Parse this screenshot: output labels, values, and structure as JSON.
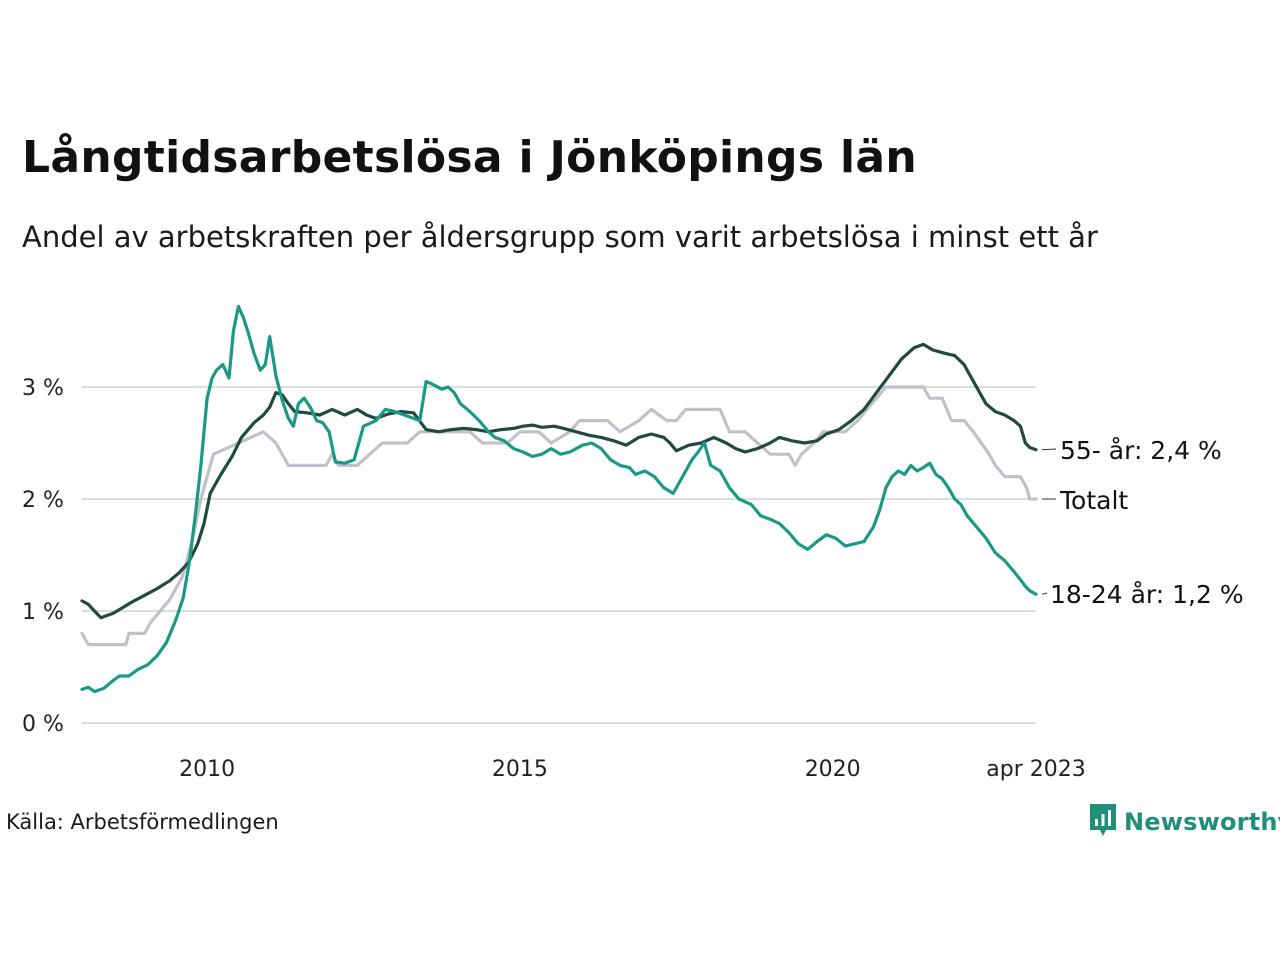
{
  "title": "Långtidsarbetslösa i Jönköpings län",
  "subtitle": "Andel av arbetskraften per åldersgrupp som varit arbetslösa i minst ett år",
  "source": "Källa: Arbetsförmedlingen",
  "brand": {
    "name": "Newsworthy",
    "icon": "newsworthy-logo-icon",
    "color": "#1f8f7c"
  },
  "chart_data": {
    "type": "line",
    "ylim": [
      0,
      3.8
    ],
    "xlim": [
      2008.0,
      2023.25
    ],
    "y_ticks": [
      {
        "value": 0,
        "label": "0 %"
      },
      {
        "value": 1,
        "label": "1 %"
      },
      {
        "value": 2,
        "label": "2 %"
      },
      {
        "value": 3,
        "label": "3 %"
      }
    ],
    "x_ticks": [
      {
        "value": 2010.0,
        "label": "2010"
      },
      {
        "value": 2015.0,
        "label": "2015"
      },
      {
        "value": 2020.0,
        "label": "2020"
      },
      {
        "value": 2023.25,
        "label": "apr 2023"
      }
    ],
    "grid": true,
    "series": [
      {
        "name": "Totalt",
        "end_label": "Totalt",
        "color": "#c4c0c9",
        "points": [
          [
            2008.0,
            0.8
          ],
          [
            2008.1,
            0.7
          ],
          [
            2008.7,
            0.7
          ],
          [
            2008.75,
            0.8
          ],
          [
            2009.0,
            0.8
          ],
          [
            2009.1,
            0.9
          ],
          [
            2009.25,
            1.0
          ],
          [
            2009.4,
            1.1
          ],
          [
            2009.6,
            1.3
          ],
          [
            2009.75,
            1.6
          ],
          [
            2009.9,
            2.0
          ],
          [
            2010.0,
            2.2
          ],
          [
            2010.1,
            2.4
          ],
          [
            2010.5,
            2.5
          ],
          [
            2010.9,
            2.6
          ],
          [
            2011.1,
            2.5
          ],
          [
            2011.3,
            2.3
          ],
          [
            2011.6,
            2.3
          ],
          [
            2011.9,
            2.3
          ],
          [
            2012.0,
            2.4
          ],
          [
            2012.1,
            2.3
          ],
          [
            2012.4,
            2.3
          ],
          [
            2012.6,
            2.4
          ],
          [
            2012.8,
            2.5
          ],
          [
            2013.2,
            2.5
          ],
          [
            2013.4,
            2.6
          ],
          [
            2013.8,
            2.6
          ],
          [
            2014.0,
            2.6
          ],
          [
            2014.2,
            2.6
          ],
          [
            2014.4,
            2.5
          ],
          [
            2014.8,
            2.5
          ],
          [
            2015.0,
            2.6
          ],
          [
            2015.3,
            2.6
          ],
          [
            2015.5,
            2.5
          ],
          [
            2015.8,
            2.6
          ],
          [
            2015.95,
            2.7
          ],
          [
            2016.4,
            2.7
          ],
          [
            2016.6,
            2.6
          ],
          [
            2016.9,
            2.7
          ],
          [
            2017.1,
            2.8
          ],
          [
            2017.35,
            2.7
          ],
          [
            2017.5,
            2.7
          ],
          [
            2017.65,
            2.8
          ],
          [
            2018.2,
            2.8
          ],
          [
            2018.35,
            2.6
          ],
          [
            2018.6,
            2.6
          ],
          [
            2018.8,
            2.5
          ],
          [
            2019.0,
            2.4
          ],
          [
            2019.3,
            2.4
          ],
          [
            2019.4,
            2.3
          ],
          [
            2019.5,
            2.4
          ],
          [
            2019.7,
            2.5
          ],
          [
            2019.85,
            2.6
          ],
          [
            2020.2,
            2.6
          ],
          [
            2020.4,
            2.7
          ],
          [
            2020.55,
            2.8
          ],
          [
            2020.7,
            2.9
          ],
          [
            2020.85,
            3.0
          ],
          [
            2021.45,
            3.0
          ],
          [
            2021.55,
            2.9
          ],
          [
            2021.75,
            2.9
          ],
          [
            2021.9,
            2.7
          ],
          [
            2022.1,
            2.7
          ],
          [
            2022.25,
            2.6
          ],
          [
            2022.5,
            2.4
          ],
          [
            2022.6,
            2.3
          ],
          [
            2022.75,
            2.2
          ],
          [
            2023.0,
            2.2
          ],
          [
            2023.1,
            2.1
          ],
          [
            2023.15,
            2.0
          ],
          [
            2023.25,
            2.0
          ]
        ]
      },
      {
        "name": "55- år",
        "end_label": "55- år: 2,4 %",
        "color": "#1f4a3c",
        "points": [
          [
            2008.0,
            1.09
          ],
          [
            2008.1,
            1.06
          ],
          [
            2008.2,
            1.0
          ],
          [
            2008.3,
            0.94
          ],
          [
            2008.4,
            0.96
          ],
          [
            2008.5,
            0.98
          ],
          [
            2008.65,
            1.03
          ],
          [
            2008.8,
            1.08
          ],
          [
            2009.0,
            1.14
          ],
          [
            2009.2,
            1.2
          ],
          [
            2009.4,
            1.27
          ],
          [
            2009.55,
            1.34
          ],
          [
            2009.7,
            1.43
          ],
          [
            2009.85,
            1.6
          ],
          [
            2009.95,
            1.78
          ],
          [
            2010.05,
            2.05
          ],
          [
            2010.2,
            2.2
          ],
          [
            2010.4,
            2.38
          ],
          [
            2010.55,
            2.55
          ],
          [
            2010.75,
            2.68
          ],
          [
            2010.9,
            2.75
          ],
          [
            2011.0,
            2.82
          ],
          [
            2011.1,
            2.95
          ],
          [
            2011.2,
            2.93
          ],
          [
            2011.3,
            2.85
          ],
          [
            2011.4,
            2.78
          ],
          [
            2011.6,
            2.77
          ],
          [
            2011.8,
            2.75
          ],
          [
            2012.0,
            2.8
          ],
          [
            2012.2,
            2.75
          ],
          [
            2012.4,
            2.8
          ],
          [
            2012.55,
            2.75
          ],
          [
            2012.7,
            2.72
          ],
          [
            2012.9,
            2.76
          ],
          [
            2013.1,
            2.78
          ],
          [
            2013.3,
            2.77
          ],
          [
            2013.5,
            2.62
          ],
          [
            2013.7,
            2.6
          ],
          [
            2013.9,
            2.62
          ],
          [
            2014.1,
            2.63
          ],
          [
            2014.3,
            2.62
          ],
          [
            2014.5,
            2.6
          ],
          [
            2014.7,
            2.62
          ],
          [
            2014.9,
            2.63
          ],
          [
            2015.05,
            2.65
          ],
          [
            2015.2,
            2.66
          ],
          [
            2015.35,
            2.64
          ],
          [
            2015.55,
            2.65
          ],
          [
            2015.7,
            2.63
          ],
          [
            2015.9,
            2.6
          ],
          [
            2016.1,
            2.57
          ],
          [
            2016.3,
            2.55
          ],
          [
            2016.5,
            2.52
          ],
          [
            2016.7,
            2.48
          ],
          [
            2016.9,
            2.55
          ],
          [
            2017.1,
            2.58
          ],
          [
            2017.3,
            2.55
          ],
          [
            2017.4,
            2.5
          ],
          [
            2017.5,
            2.43
          ],
          [
            2017.7,
            2.48
          ],
          [
            2017.9,
            2.5
          ],
          [
            2018.1,
            2.55
          ],
          [
            2018.3,
            2.5
          ],
          [
            2018.45,
            2.45
          ],
          [
            2018.6,
            2.42
          ],
          [
            2018.8,
            2.45
          ],
          [
            2019.0,
            2.5
          ],
          [
            2019.15,
            2.55
          ],
          [
            2019.35,
            2.52
          ],
          [
            2019.55,
            2.5
          ],
          [
            2019.75,
            2.52
          ],
          [
            2019.9,
            2.58
          ],
          [
            2020.1,
            2.62
          ],
          [
            2020.3,
            2.7
          ],
          [
            2020.5,
            2.8
          ],
          [
            2020.7,
            2.95
          ],
          [
            2020.9,
            3.1
          ],
          [
            2021.1,
            3.25
          ],
          [
            2021.3,
            3.35
          ],
          [
            2021.45,
            3.38
          ],
          [
            2021.6,
            3.33
          ],
          [
            2021.8,
            3.3
          ],
          [
            2021.95,
            3.28
          ],
          [
            2022.1,
            3.2
          ],
          [
            2022.25,
            3.05
          ],
          [
            2022.45,
            2.85
          ],
          [
            2022.6,
            2.78
          ],
          [
            2022.75,
            2.75
          ],
          [
            2022.9,
            2.7
          ],
          [
            2023.0,
            2.65
          ],
          [
            2023.08,
            2.5
          ],
          [
            2023.15,
            2.46
          ],
          [
            2023.25,
            2.44
          ]
        ]
      },
      {
        "name": "18-24 år",
        "end_label": "18-24 år: 1,2 %",
        "color": "#1a9987",
        "points": [
          [
            2008.0,
            0.3
          ],
          [
            2008.1,
            0.32
          ],
          [
            2008.2,
            0.28
          ],
          [
            2008.35,
            0.31
          ],
          [
            2008.5,
            0.38
          ],
          [
            2008.6,
            0.42
          ],
          [
            2008.75,
            0.42
          ],
          [
            2008.9,
            0.48
          ],
          [
            2009.05,
            0.52
          ],
          [
            2009.2,
            0.6
          ],
          [
            2009.35,
            0.72
          ],
          [
            2009.5,
            0.92
          ],
          [
            2009.62,
            1.12
          ],
          [
            2009.72,
            1.45
          ],
          [
            2009.82,
            1.9
          ],
          [
            2009.9,
            2.3
          ],
          [
            2010.0,
            2.9
          ],
          [
            2010.08,
            3.08
          ],
          [
            2010.15,
            3.15
          ],
          [
            2010.25,
            3.2
          ],
          [
            2010.35,
            3.08
          ],
          [
            2010.42,
            3.5
          ],
          [
            2010.5,
            3.72
          ],
          [
            2010.58,
            3.62
          ],
          [
            2010.66,
            3.48
          ],
          [
            2010.75,
            3.3
          ],
          [
            2010.85,
            3.15
          ],
          [
            2010.93,
            3.2
          ],
          [
            2011.0,
            3.45
          ],
          [
            2011.1,
            3.1
          ],
          [
            2011.2,
            2.88
          ],
          [
            2011.3,
            2.72
          ],
          [
            2011.38,
            2.65
          ],
          [
            2011.46,
            2.85
          ],
          [
            2011.55,
            2.9
          ],
          [
            2011.65,
            2.82
          ],
          [
            2011.75,
            2.7
          ],
          [
            2011.85,
            2.68
          ],
          [
            2011.95,
            2.6
          ],
          [
            2012.05,
            2.33
          ],
          [
            2012.2,
            2.32
          ],
          [
            2012.35,
            2.35
          ],
          [
            2012.5,
            2.65
          ],
          [
            2012.7,
            2.7
          ],
          [
            2012.85,
            2.8
          ],
          [
            2013.0,
            2.78
          ],
          [
            2013.15,
            2.75
          ],
          [
            2013.3,
            2.72
          ],
          [
            2013.4,
            2.7
          ],
          [
            2013.5,
            3.05
          ],
          [
            2013.62,
            3.02
          ],
          [
            2013.75,
            2.98
          ],
          [
            2013.85,
            3.0
          ],
          [
            2013.95,
            2.95
          ],
          [
            2014.05,
            2.85
          ],
          [
            2014.2,
            2.78
          ],
          [
            2014.35,
            2.7
          ],
          [
            2014.5,
            2.6
          ],
          [
            2014.6,
            2.55
          ],
          [
            2014.75,
            2.52
          ],
          [
            2014.9,
            2.45
          ],
          [
            2015.05,
            2.42
          ],
          [
            2015.2,
            2.38
          ],
          [
            2015.35,
            2.4
          ],
          [
            2015.5,
            2.45
          ],
          [
            2015.65,
            2.4
          ],
          [
            2015.8,
            2.42
          ],
          [
            2016.0,
            2.48
          ],
          [
            2016.15,
            2.5
          ],
          [
            2016.3,
            2.45
          ],
          [
            2016.45,
            2.35
          ],
          [
            2016.6,
            2.3
          ],
          [
            2016.75,
            2.28
          ],
          [
            2016.85,
            2.22
          ],
          [
            2017.0,
            2.25
          ],
          [
            2017.15,
            2.2
          ],
          [
            2017.3,
            2.1
          ],
          [
            2017.45,
            2.05
          ],
          [
            2017.6,
            2.2
          ],
          [
            2017.75,
            2.35
          ],
          [
            2017.85,
            2.42
          ],
          [
            2017.95,
            2.5
          ],
          [
            2018.05,
            2.3
          ],
          [
            2018.2,
            2.25
          ],
          [
            2018.35,
            2.1
          ],
          [
            2018.5,
            2.0
          ],
          [
            2018.7,
            1.95
          ],
          [
            2018.85,
            1.85
          ],
          [
            2019.0,
            1.82
          ],
          [
            2019.15,
            1.78
          ],
          [
            2019.3,
            1.7
          ],
          [
            2019.45,
            1.6
          ],
          [
            2019.6,
            1.55
          ],
          [
            2019.75,
            1.62
          ],
          [
            2019.9,
            1.68
          ],
          [
            2020.05,
            1.65
          ],
          [
            2020.2,
            1.58
          ],
          [
            2020.35,
            1.6
          ],
          [
            2020.5,
            1.62
          ],
          [
            2020.65,
            1.75
          ],
          [
            2020.75,
            1.9
          ],
          [
            2020.85,
            2.1
          ],
          [
            2020.95,
            2.2
          ],
          [
            2021.05,
            2.25
          ],
          [
            2021.15,
            2.22
          ],
          [
            2021.25,
            2.3
          ],
          [
            2021.35,
            2.25
          ],
          [
            2021.45,
            2.28
          ],
          [
            2021.55,
            2.32
          ],
          [
            2021.65,
            2.22
          ],
          [
            2021.75,
            2.18
          ],
          [
            2021.85,
            2.1
          ],
          [
            2021.95,
            2.0
          ],
          [
            2022.05,
            1.95
          ],
          [
            2022.15,
            1.85
          ],
          [
            2022.3,
            1.75
          ],
          [
            2022.45,
            1.65
          ],
          [
            2022.6,
            1.52
          ],
          [
            2022.75,
            1.45
          ],
          [
            2022.9,
            1.35
          ],
          [
            2023.0,
            1.28
          ],
          [
            2023.08,
            1.22
          ],
          [
            2023.15,
            1.18
          ],
          [
            2023.25,
            1.15
          ]
        ]
      }
    ]
  }
}
